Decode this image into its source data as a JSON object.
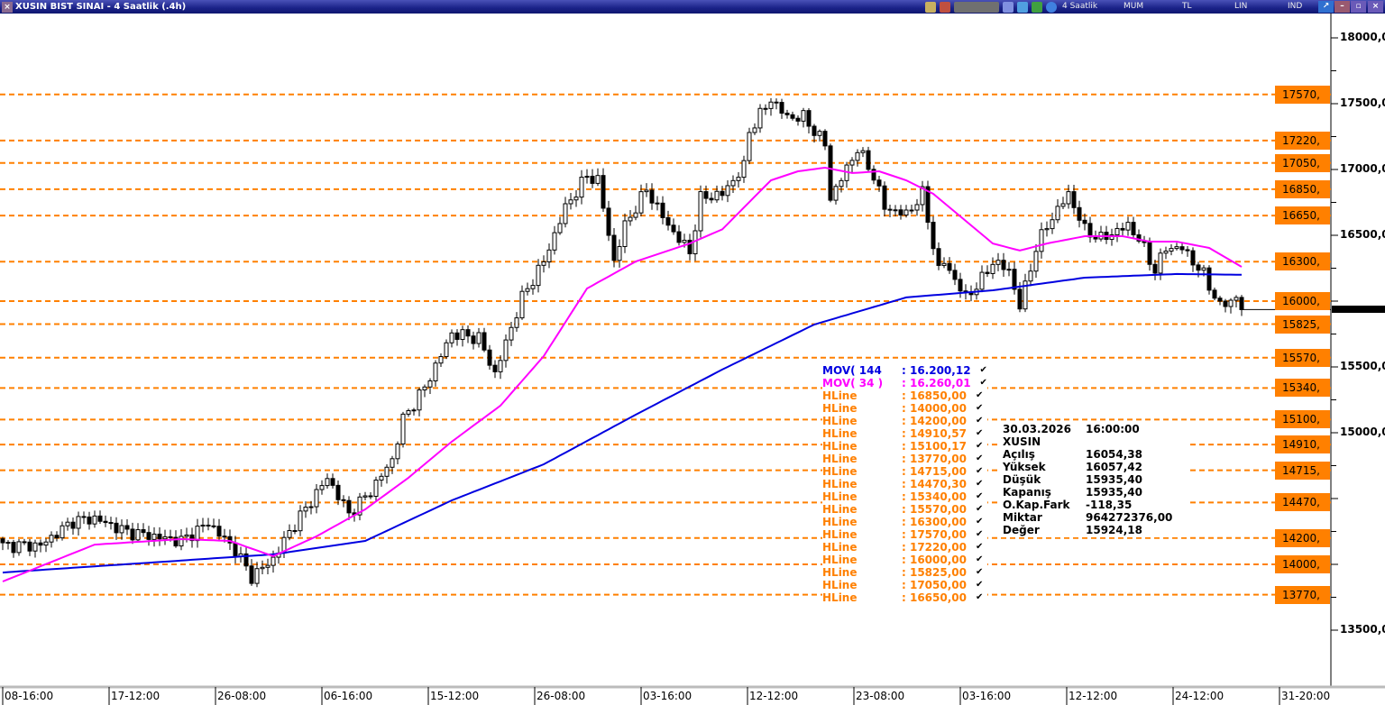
{
  "window": {
    "title": "XUSIN BIST SINAI - 4 Saatlik (.4h)",
    "period": "4 Saatlik",
    "chart_type": "MUM",
    "currency": "TL",
    "scale": "LIN",
    "mode": "IND"
  },
  "colors": {
    "hline": "#ff8000",
    "mov144": "#0000e0",
    "mov34": "#ff00ff",
    "candle_up": "#ffffff",
    "candle_down": "#000000"
  },
  "legend": [
    {
      "name": "MOV( 144",
      "value": ": 16.200,12",
      "color": "#0000e0"
    },
    {
      "name": "MOV( 34 )",
      "value": ": 16.260,01",
      "color": "#ff00ff"
    },
    {
      "name": "HLine",
      "value": ": 16850,00"
    },
    {
      "name": "HLine",
      "value": ": 14000,00"
    },
    {
      "name": "HLine",
      "value": ": 14200,00"
    },
    {
      "name": "HLine",
      "value": ": 14910,57"
    },
    {
      "name": "HLine",
      "value": ": 15100,17"
    },
    {
      "name": "HLine",
      "value": ": 13770,00"
    },
    {
      "name": "HLine",
      "value": ": 14715,00"
    },
    {
      "name": "HLine",
      "value": ": 14470,30"
    },
    {
      "name": "HLine",
      "value": ": 15340,00"
    },
    {
      "name": "HLine",
      "value": ": 15570,00"
    },
    {
      "name": "HLine",
      "value": ": 16300,00"
    },
    {
      "name": "HLine",
      "value": ": 17570,00"
    },
    {
      "name": "HLine",
      "value": ": 17220,00"
    },
    {
      "name": "HLine",
      "value": ": 16000,00"
    },
    {
      "name": "HLine",
      "value": ": 15825,00"
    },
    {
      "name": "HLine",
      "value": ": 17050,00"
    },
    {
      "name": "HLine",
      "value": ": 16650,00"
    }
  ],
  "info": {
    "date": "30.03.2026",
    "time": "16:00:00",
    "symbol": "XUSIN",
    "rows": [
      [
        "Açılış",
        "16054,38"
      ],
      [
        "Yüksek",
        "16057,42"
      ],
      [
        "Düşük",
        "15935,40"
      ],
      [
        "Kapanış",
        "15935,40"
      ],
      [
        "O.Kap.Fark",
        "-118,35"
      ],
      [
        "Miktar",
        "964272376,00"
      ],
      [
        "Değer",
        "15924,18"
      ]
    ]
  },
  "chart_data": {
    "type": "candlestick",
    "ylim": [
      13400,
      18180
    ],
    "y_ticks": [
      {
        "v": 18000,
        "label": "18000,0"
      },
      {
        "v": 17500,
        "label": "17500,0"
      },
      {
        "v": 17000,
        "label": "17000,0"
      },
      {
        "v": 16500,
        "label": "16500,0"
      },
      {
        "v": 15500,
        "label": "15500,0"
      },
      {
        "v": 15000,
        "label": "15000,0"
      },
      {
        "v": 13500,
        "label": "13500,0"
      }
    ],
    "x_labels": [
      "08-16:00",
      "17-12:00",
      "26-08:00",
      "06-16:00",
      "15-12:00",
      "26-08:00",
      "03-16:00",
      "12-12:00",
      "23-08:00",
      "03-16:00",
      "12-12:00",
      "24-12:00",
      "31-20:00"
    ],
    "hlines": [
      {
        "v": 17570,
        "label": "17570,"
      },
      {
        "v": 17220,
        "label": "17220,"
      },
      {
        "v": 17050,
        "label": "17050,"
      },
      {
        "v": 16850,
        "label": "16850,"
      },
      {
        "v": 16650,
        "label": "16650,"
      },
      {
        "v": 16300,
        "label": "16300,"
      },
      {
        "v": 16000,
        "label": "16000,"
      },
      {
        "v": 15825,
        "label": "15825,"
      },
      {
        "v": 15570,
        "label": "15570,"
      },
      {
        "v": 15340,
        "label": "15340,"
      },
      {
        "v": 15100,
        "label": "15100,"
      },
      {
        "v": 14910,
        "label": "14910,"
      },
      {
        "v": 14715,
        "label": "14715,"
      },
      {
        "v": 14470,
        "label": "14470,"
      },
      {
        "v": 14200,
        "label": "14200,"
      },
      {
        "v": 14000,
        "label": "14000,"
      },
      {
        "v": 13770,
        "label": "13770,"
      }
    ],
    "last_price": 15935.4,
    "close_path": [
      [
        0,
        14144
      ],
      [
        7,
        14144
      ],
      [
        13,
        14329
      ],
      [
        17,
        14349
      ],
      [
        23,
        14247
      ],
      [
        33,
        14178
      ],
      [
        38,
        14315
      ],
      [
        43,
        14110
      ],
      [
        46,
        13904
      ],
      [
        50,
        14041
      ],
      [
        53,
        14247
      ],
      [
        60,
        14658
      ],
      [
        64,
        14384
      ],
      [
        68,
        14555
      ],
      [
        72,
        14795
      ],
      [
        74,
        15103
      ],
      [
        78,
        15343
      ],
      [
        83,
        15754
      ],
      [
        88,
        15719
      ],
      [
        91,
        15445
      ],
      [
        93,
        15685
      ],
      [
        96,
        16027
      ],
      [
        100,
        16301
      ],
      [
        104,
        16712
      ],
      [
        108,
        16952
      ],
      [
        110,
        16918
      ],
      [
        113,
        16301
      ],
      [
        115,
        16575
      ],
      [
        119,
        16849
      ],
      [
        123,
        16575
      ],
      [
        127,
        16370
      ],
      [
        129,
        16781
      ],
      [
        133,
        16815
      ],
      [
        137,
        17021
      ],
      [
        138,
        17295
      ],
      [
        142,
        17534
      ],
      [
        145,
        17397
      ],
      [
        148,
        17397
      ],
      [
        152,
        17192
      ],
      [
        153,
        16781
      ],
      [
        158,
        17158
      ],
      [
        161,
        16952
      ],
      [
        163,
        16712
      ],
      [
        167,
        16658
      ],
      [
        170,
        16815
      ],
      [
        173,
        16233
      ],
      [
        174,
        16301
      ],
      [
        178,
        16027
      ],
      [
        181,
        16164
      ],
      [
        183,
        16301
      ],
      [
        186,
        16233
      ],
      [
        188,
        15959
      ],
      [
        191,
        16404
      ],
      [
        193,
        16575
      ],
      [
        197,
        16815
      ],
      [
        200,
        16541
      ],
      [
        203,
        16473
      ],
      [
        208,
        16575
      ],
      [
        210,
        16473
      ],
      [
        213,
        16233
      ],
      [
        215,
        16404
      ],
      [
        218,
        16404
      ],
      [
        222,
        16199
      ],
      [
        225,
        15959
      ],
      [
        228,
        16027
      ],
      [
        229,
        15935.4
      ]
    ],
    "mov144": [
      [
        0,
        13938
      ],
      [
        50,
        14076
      ],
      [
        67,
        14178
      ],
      [
        83,
        14486
      ],
      [
        100,
        14760
      ],
      [
        117,
        15137
      ],
      [
        133,
        15480
      ],
      [
        150,
        15822
      ],
      [
        167,
        16028
      ],
      [
        183,
        16082
      ],
      [
        200,
        16178
      ],
      [
        217,
        16206
      ],
      [
        229,
        16200.12
      ]
    ],
    "mov34": [
      [
        0,
        13870
      ],
      [
        17,
        14150
      ],
      [
        33,
        14192
      ],
      [
        42,
        14178
      ],
      [
        50,
        14062
      ],
      [
        58,
        14213
      ],
      [
        67,
        14418
      ],
      [
        75,
        14658
      ],
      [
        83,
        14932
      ],
      [
        92,
        15206
      ],
      [
        100,
        15582
      ],
      [
        108,
        16096
      ],
      [
        117,
        16301
      ],
      [
        127,
        16438
      ],
      [
        133,
        16545
      ],
      [
        142,
        16918
      ],
      [
        147,
        16986
      ],
      [
        152,
        17014
      ],
      [
        157,
        16973
      ],
      [
        162,
        16986
      ],
      [
        167,
        16918
      ],
      [
        172,
        16815
      ],
      [
        177,
        16644
      ],
      [
        183,
        16438
      ],
      [
        188,
        16384
      ],
      [
        193,
        16438
      ],
      [
        200,
        16493
      ],
      [
        207,
        16493
      ],
      [
        212,
        16452
      ],
      [
        217,
        16452
      ],
      [
        223,
        16404
      ],
      [
        229,
        16260.01
      ]
    ]
  }
}
